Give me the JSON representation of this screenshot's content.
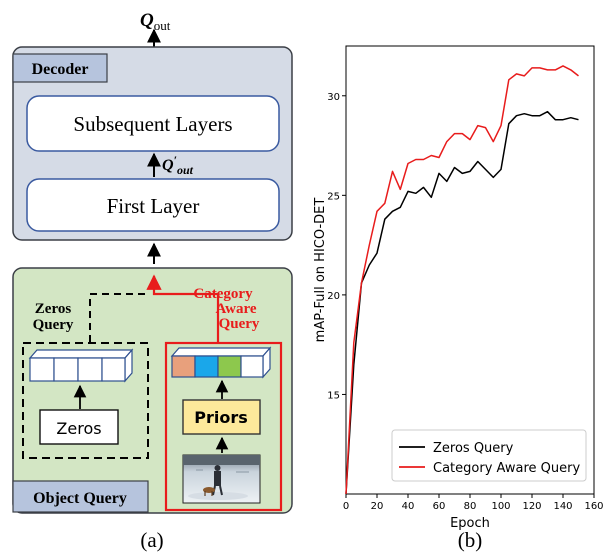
{
  "diagram": {
    "output_label": "Q",
    "output_sub": "out",
    "decoder_title": "Decoder",
    "subsequent_layers": "Subsequent Layers",
    "first_layer": "First Layer",
    "intermediate_label": "Q",
    "intermediate_prime": "′",
    "intermediate_sub": "out",
    "zeros_query_line1": "Zeros",
    "zeros_query_line2": "Query",
    "category_line1": "Category",
    "category_line2": "Aware",
    "category_line3": "Query",
    "zeros_box": "Zeros",
    "priors_box": "Priors",
    "object_query_title": "Object Query",
    "caption_a": "(a)",
    "caption_b": "(b)",
    "colors": {
      "decoder_bg": "#d5dbe6",
      "object_query_bg": "#d3e6c4",
      "highlight_red": "#e81c1c",
      "priors_bg": "#fde99b",
      "cell_orange": "#e8a07c",
      "cell_blue": "#1aa7ea",
      "cell_green": "#8dc84d"
    }
  },
  "chart_data": {
    "type": "line",
    "xlabel": "Epoch",
    "ylabel": "mAP-Full on HICO-DET",
    "xlim": [
      0,
      160
    ],
    "ylim": [
      10,
      32.5
    ],
    "xticks": [
      0,
      20,
      40,
      60,
      80,
      100,
      120,
      140,
      160
    ],
    "yticks": [
      15,
      20,
      25,
      30
    ],
    "grid": false,
    "legend_position": "lower-right",
    "series": [
      {
        "name": "Zeros Query",
        "color": "#000000",
        "x": [
          0,
          5,
          10,
          15,
          20,
          25,
          30,
          35,
          40,
          45,
          50,
          55,
          60,
          65,
          70,
          75,
          80,
          85,
          90,
          95,
          100,
          105,
          110,
          115,
          120,
          125,
          130,
          135,
          140,
          145,
          150
        ],
        "y": [
          10,
          16.5,
          20.6,
          21.5,
          22.1,
          23.8,
          24.2,
          24.4,
          25.2,
          25.1,
          25.4,
          24.9,
          26.1,
          25.7,
          26.4,
          26.1,
          26.2,
          26.7,
          26.3,
          25.9,
          26.3,
          28.6,
          29.0,
          29.1,
          29.0,
          29.0,
          29.2,
          28.8,
          28.8,
          28.9,
          28.8
        ]
      },
      {
        "name": "Category Aware Query",
        "color": "#e81c1c",
        "x": [
          0,
          5,
          10,
          15,
          20,
          25,
          30,
          35,
          40,
          45,
          50,
          55,
          60,
          65,
          70,
          75,
          80,
          85,
          90,
          95,
          100,
          105,
          110,
          115,
          120,
          125,
          130,
          135,
          140,
          145,
          150
        ],
        "y": [
          10,
          17.6,
          20.6,
          22.5,
          24.2,
          24.6,
          26.2,
          25.3,
          26.6,
          26.8,
          26.8,
          27.0,
          26.9,
          27.7,
          28.1,
          28.1,
          27.8,
          28.5,
          28.4,
          27.7,
          28.5,
          30.8,
          31.1,
          31.0,
          31.4,
          31.4,
          31.3,
          31.3,
          31.5,
          31.3,
          31.0
        ]
      }
    ]
  }
}
